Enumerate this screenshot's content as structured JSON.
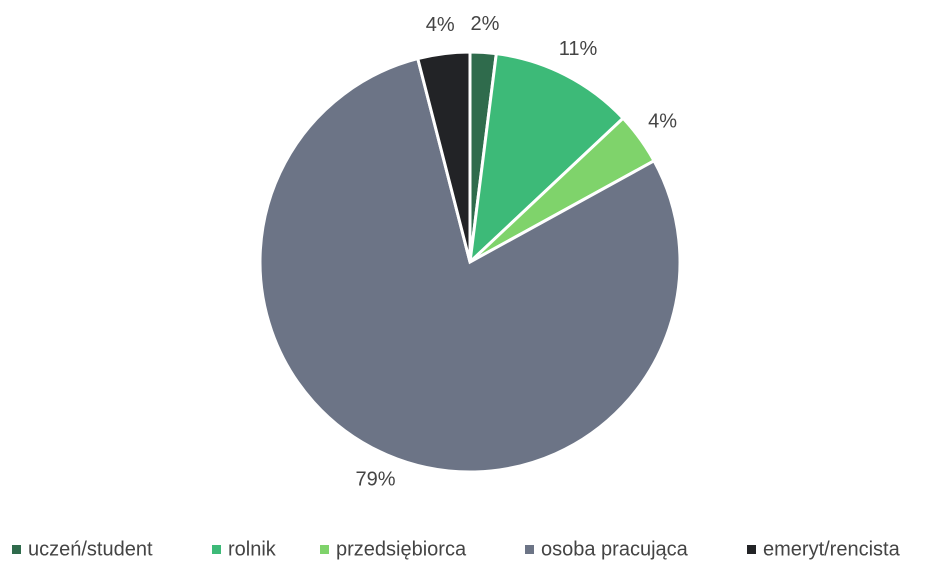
{
  "chart_data": {
    "type": "pie",
    "categories": [
      "uczeń/student",
      "rolnik",
      "przedsiębiorca",
      "osoba pracująca",
      "emeryt/rencista"
    ],
    "values": [
      2,
      11,
      4,
      79,
      4
    ],
    "value_labels": [
      "2%",
      "11%",
      "4%",
      "79%",
      "4%"
    ],
    "colors": [
      "#2f6b4c",
      "#3dba78",
      "#7fd36b",
      "#6c7486",
      "#222326"
    ],
    "legend": "bottom"
  }
}
